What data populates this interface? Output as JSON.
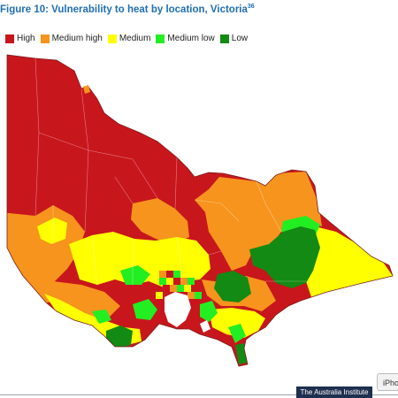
{
  "figure": {
    "title": "Figure 10: Vulnerability to heat by location, Victoria",
    "footnote_ref": "36"
  },
  "legend": [
    {
      "label": "High",
      "color": "#c8161d"
    },
    {
      "label": "Medium high",
      "color": "#f7941d"
    },
    {
      "label": "Medium",
      "color": "#ffff00"
    },
    {
      "label": "Medium low",
      "color": "#22ee22"
    },
    {
      "label": "Low",
      "color": "#138a13"
    }
  ],
  "footer": {
    "publisher": "The Australia Institute",
    "chip_text": "iPho"
  }
}
